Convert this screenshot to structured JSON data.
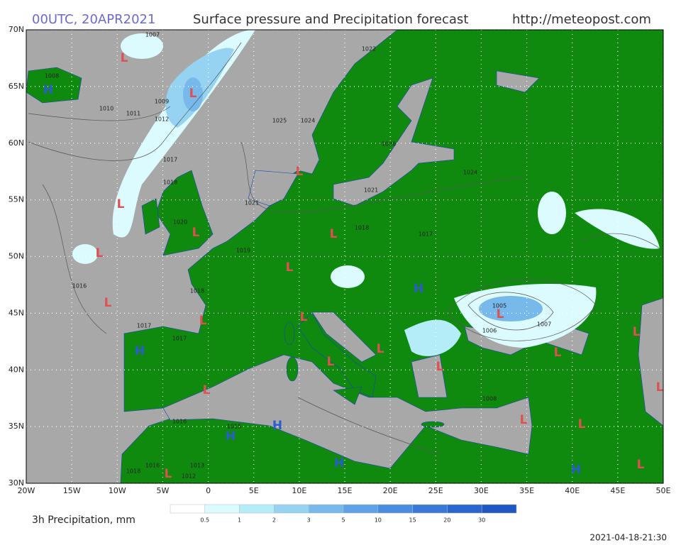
{
  "header": {
    "run": "00UTC, 20APR2021",
    "title": "Surface pressure and Precipitation forecast",
    "url": "http://meteopost.com"
  },
  "map": {
    "lat_ticks": [
      {
        "value": 70,
        "label": "70N"
      },
      {
        "value": 65,
        "label": "65N"
      },
      {
        "value": 60,
        "label": "60N"
      },
      {
        "value": 55,
        "label": "55N"
      },
      {
        "value": 50,
        "label": "50N"
      },
      {
        "value": 45,
        "label": "45N"
      },
      {
        "value": 40,
        "label": "40N"
      },
      {
        "value": 35,
        "label": "35N"
      },
      {
        "value": 30,
        "label": "30N"
      }
    ],
    "lon_ticks": [
      {
        "value": -20,
        "label": "20W"
      },
      {
        "value": -15,
        "label": "15W"
      },
      {
        "value": -10,
        "label": "10W"
      },
      {
        "value": -5,
        "label": "5W"
      },
      {
        "value": 0,
        "label": "0"
      },
      {
        "value": 5,
        "label": "5E"
      },
      {
        "value": 10,
        "label": "10E"
      },
      {
        "value": 15,
        "label": "15E"
      },
      {
        "value": 20,
        "label": "20E"
      },
      {
        "value": 25,
        "label": "25E"
      },
      {
        "value": 30,
        "label": "30E"
      },
      {
        "value": 35,
        "label": "35E"
      },
      {
        "value": 40,
        "label": "40E"
      },
      {
        "value": 45,
        "label": "45E"
      },
      {
        "value": 50,
        "label": "50E"
      }
    ],
    "pressure_centers": [
      "L",
      "H",
      "L",
      "L",
      "L",
      "L",
      "L",
      "L",
      "L",
      "H",
      "L",
      "L",
      "L",
      "L",
      "H",
      "L",
      "L",
      "L",
      "L",
      "L",
      "L",
      "L",
      "H",
      "H",
      "L",
      "L",
      "H",
      "L",
      "H",
      "L"
    ],
    "isobar_labels": [
      "1007",
      "1008",
      "1009",
      "1010",
      "1011",
      "1012",
      "1017",
      "1018",
      "1020",
      "1021",
      "1022",
      "1024",
      "1025",
      "1026",
      "1024",
      "1021",
      "1018",
      "1017",
      "1019",
      "1016",
      "1018",
      "1005",
      "1006",
      "1007",
      "1017",
      "1017",
      "1008",
      "1015",
      "1016",
      "1013",
      "1012",
      "1018",
      "1016"
    ]
  },
  "legend": {
    "title": "3h Precipitation, mm",
    "levels": [
      0.5,
      1,
      2,
      3,
      5,
      10,
      15,
      20,
      30
    ],
    "colors": [
      "#ffffff",
      "#dcfbff",
      "#b4ecf7",
      "#96d2f2",
      "#78b9ec",
      "#5fa2e6",
      "#4a8ce0",
      "#3a78d8",
      "#2a66cf",
      "#1e56c4"
    ]
  },
  "timestamp": "2021-04-18-21:30"
}
